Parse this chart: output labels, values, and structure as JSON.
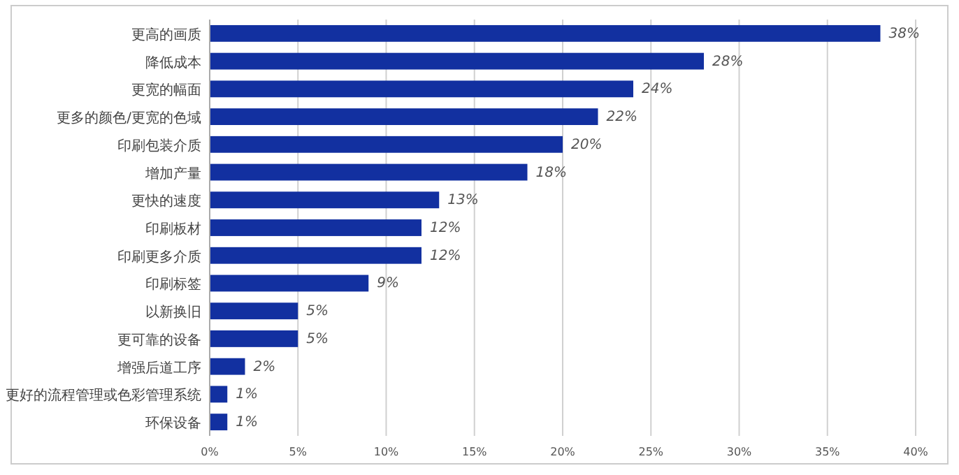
{
  "chart_data": {
    "type": "bar",
    "orientation": "horizontal",
    "categories": [
      "更高的画质",
      "降低成本",
      "更宽的幅面",
      "更多的颜色/更宽的色域",
      "印刷包装介质",
      "增加产量",
      "更快的速度",
      "印刷板材",
      "印刷更多介质",
      "印刷标签",
      "以新换旧",
      "更可靠的设备",
      "增强后道工序",
      "更好的流程管理或色彩管理系统",
      "环保设备"
    ],
    "values": [
      38,
      28,
      24,
      22,
      20,
      18,
      13,
      12,
      12,
      9,
      5,
      5,
      2,
      1,
      1
    ],
    "color": "#1230a0",
    "xlim": [
      0,
      40
    ],
    "xticks": [
      {
        "value": 0,
        "label": "0%"
      },
      {
        "value": 5,
        "label": "5%"
      },
      {
        "value": 10,
        "label": "10%"
      },
      {
        "value": 15,
        "label": "15%"
      },
      {
        "value": 20,
        "label": "20%"
      },
      {
        "value": 25,
        "label": "25%"
      },
      {
        "value": 30,
        "label": "30%"
      },
      {
        "value": 35,
        "label": "35%"
      },
      {
        "value": 40,
        "label": "40%"
      }
    ],
    "value_labels": [
      "38%",
      "28%",
      "24%",
      "22%",
      "20%",
      "18%",
      "13%",
      "12%",
      "12%",
      "9%",
      "5%",
      "5%",
      "2%",
      "1%",
      "1%"
    ],
    "grid": "x"
  }
}
